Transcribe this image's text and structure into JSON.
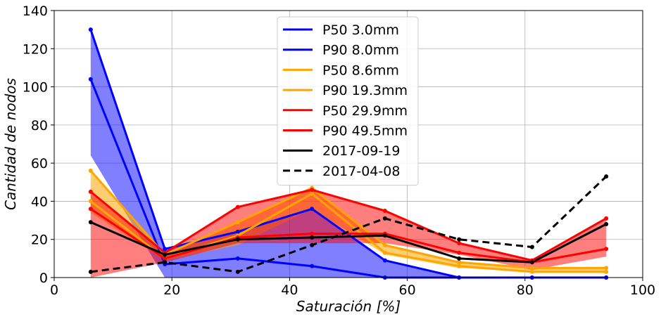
{
  "chart_data": {
    "type": "line",
    "title": "",
    "xlabel": "Saturación [%]",
    "ylabel": "Cantidad de nodos",
    "xlim": [
      0,
      100
    ],
    "ylim": [
      0,
      140
    ],
    "xticks": [
      0,
      20,
      40,
      60,
      80,
      100
    ],
    "yticks": [
      0,
      20,
      40,
      60,
      80,
      100,
      120,
      140
    ],
    "grid": true,
    "legend_position": "top-center",
    "x": [
      6.2,
      18.8,
      31.2,
      43.8,
      56.2,
      68.8,
      81.2,
      93.8
    ],
    "series": [
      {
        "name": "P50 3.0mm",
        "color": "#0000ff",
        "style": "solid",
        "markers": true,
        "values": [
          104,
          7,
          10,
          6,
          0,
          0,
          0,
          0
        ]
      },
      {
        "name": "P90 8.0mm",
        "color": "#0000ff",
        "style": "solid",
        "markers": true,
        "values": [
          130,
          15,
          24,
          36,
          9,
          0,
          0,
          0
        ]
      },
      {
        "name": "P50 8.6mm",
        "color": "#ffa500",
        "style": "solid",
        "markers": true,
        "values": [
          40,
          10,
          22,
          44,
          13,
          6,
          3,
          3
        ]
      },
      {
        "name": "P90 19.3mm",
        "color": "#ffa500",
        "style": "solid",
        "markers": true,
        "values": [
          56,
          12,
          29,
          47,
          17,
          8,
          5,
          5
        ]
      },
      {
        "name": "P50 29.9mm",
        "color": "#ff0000",
        "style": "solid",
        "markers": true,
        "values": [
          36,
          10,
          21,
          23,
          23,
          13,
          8,
          15
        ]
      },
      {
        "name": "P90 49.5mm",
        "color": "#ff0000",
        "style": "solid",
        "markers": true,
        "values": [
          45,
          13,
          37,
          46,
          35,
          18,
          9,
          31
        ]
      },
      {
        "name": "2017-09-19",
        "color": "#000000",
        "style": "solid",
        "markers": true,
        "values": [
          29,
          12,
          20,
          21,
          22,
          10,
          8,
          28
        ]
      },
      {
        "name": "2017-04-08",
        "color": "#000000",
        "style": "dashed",
        "markers": true,
        "values": [
          3,
          8,
          3,
          17,
          31,
          20,
          16,
          53
        ]
      }
    ],
    "bands": [
      {
        "color": "#0000ff",
        "opacity": 0.5,
        "lower": [
          64,
          0,
          0,
          0,
          0,
          0,
          0,
          0
        ],
        "upper": [
          130,
          15,
          24,
          36,
          9,
          0,
          0,
          0
        ]
      },
      {
        "color": "#ffa500",
        "opacity": 0.55,
        "lower": [
          34,
          9,
          17,
          36,
          12,
          5,
          3,
          3
        ],
        "upper": [
          56,
          12,
          29,
          47,
          17,
          8,
          5,
          5
        ]
      },
      {
        "color": "#ff0000",
        "opacity": 0.5,
        "lower": [
          0,
          8,
          18,
          18,
          18,
          12,
          4,
          11
        ],
        "upper": [
          45,
          13,
          37,
          46,
          35,
          18,
          9,
          31
        ]
      }
    ]
  }
}
